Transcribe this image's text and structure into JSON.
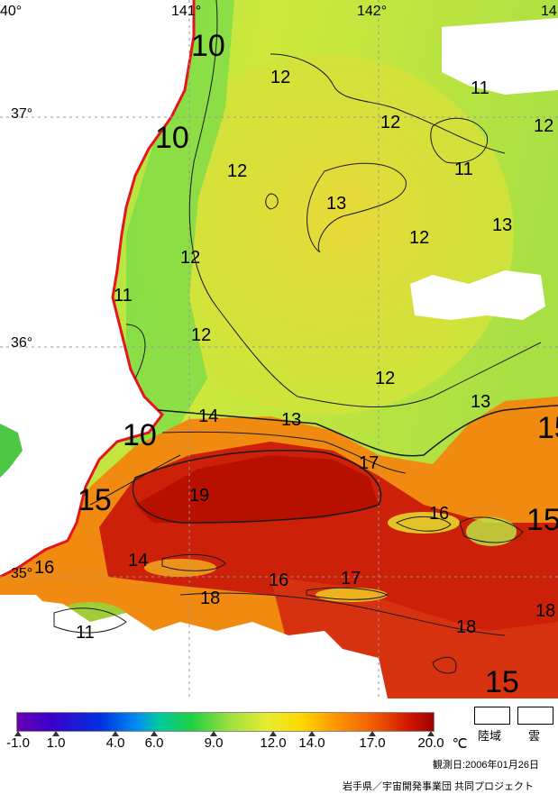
{
  "longitude_labels": [
    "40°",
    "141°",
    "142°",
    "14"
  ],
  "latitude_labels": [
    "37°",
    "36°",
    "35°"
  ],
  "contour_labels": [
    "10",
    "12",
    "11",
    "12",
    "10",
    "12",
    "13",
    "12",
    "11",
    "12",
    "13",
    "12",
    "11",
    "12",
    "12",
    "13",
    "14",
    "13",
    "10",
    "17",
    "15",
    "15",
    "19",
    "16",
    "15",
    "14",
    "16",
    "16",
    "17",
    "18",
    "18",
    "18",
    "11",
    "15"
  ],
  "colors": {
    "coast": "#e8141c",
    "land": "#ffffff",
    "cloud": "#ffffff",
    "cold_water": "#7fe050",
    "mid_water": "#d8e838",
    "warm_water": "#f08c10",
    "hot_water": "#b81000"
  },
  "legend": {
    "ticks": [
      "-1.0",
      "1.0",
      "4.0",
      "6.0",
      "9.0",
      "12.0",
      "14.0",
      "17.0",
      "20.0"
    ],
    "unit": "℃",
    "land_label": "陸域",
    "cloud_label": "雲",
    "observation_date": "観測日:2006年01月26日",
    "credit": "岩手県／宇宙開発事業団 共同プロジェクト"
  }
}
